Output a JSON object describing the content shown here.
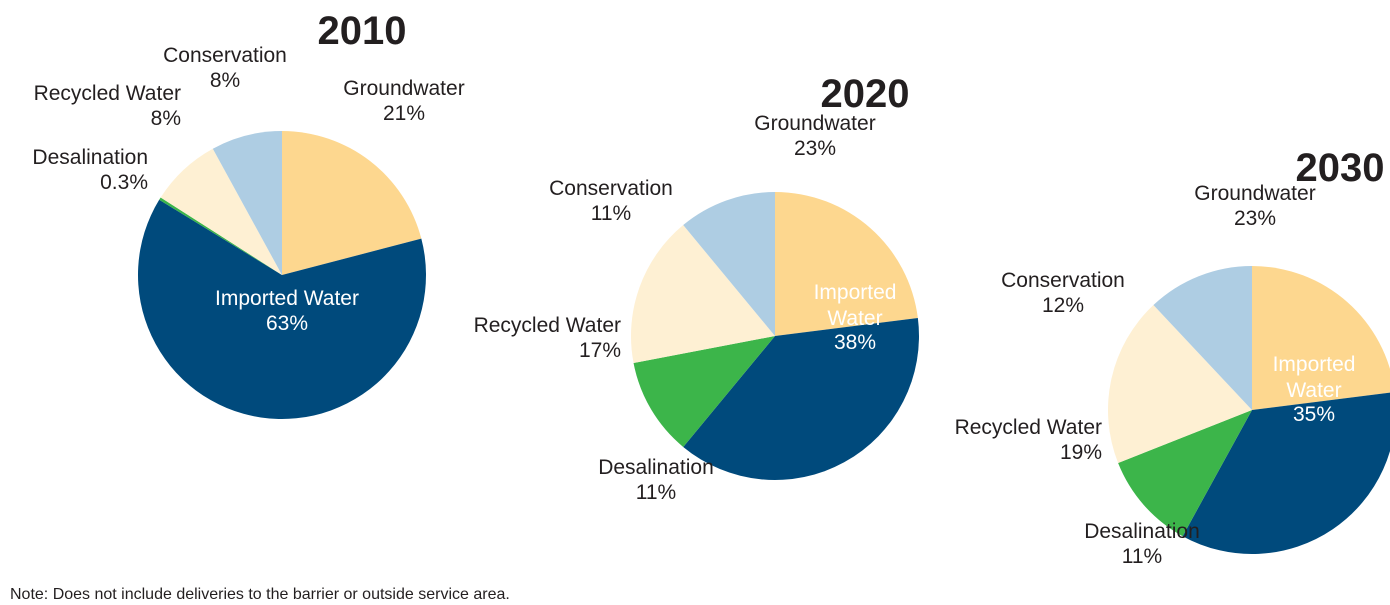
{
  "chart_data": [
    {
      "type": "pie",
      "title": "2010",
      "slices": [
        {
          "label": "Groundwater",
          "value": 21,
          "display": "21%",
          "color": "#fdd78f"
        },
        {
          "label": "Imported Water",
          "value": 63,
          "display": "63%",
          "color": "#004a7c"
        },
        {
          "label": "Desalination",
          "value": 0.3,
          "display": "0.3%",
          "color": "#3cb54a"
        },
        {
          "label": "Recycled Water",
          "value": 8,
          "display": "8%",
          "color": "#fef0d3"
        },
        {
          "label": "Conservation",
          "value": 8,
          "display": "8%",
          "color": "#aecde3"
        }
      ]
    },
    {
      "type": "pie",
      "title": "2020",
      "slices": [
        {
          "label": "Groundwater",
          "value": 23,
          "display": "23%",
          "color": "#fdd78f"
        },
        {
          "label": "Imported Water",
          "value": 38,
          "display": "38%",
          "color": "#004a7c"
        },
        {
          "label": "Desalination",
          "value": 11,
          "display": "11%",
          "color": "#3cb54a"
        },
        {
          "label": "Recycled Water",
          "value": 17,
          "display": "17%",
          "color": "#fef0d3"
        },
        {
          "label": "Conservation",
          "value": 11,
          "display": "11%",
          "color": "#aecde3"
        }
      ]
    },
    {
      "type": "pie",
      "title": "2030",
      "slices": [
        {
          "label": "Groundwater",
          "value": 23,
          "display": "23%",
          "color": "#fdd78f"
        },
        {
          "label": "Imported Water",
          "value": 35,
          "display": "35%",
          "color": "#004a7c"
        },
        {
          "label": "Desalination",
          "value": 11,
          "display": "11%",
          "color": "#3cb54a"
        },
        {
          "label": "Recycled Water",
          "value": 19,
          "display": "19%",
          "color": "#fef0d3"
        },
        {
          "label": "Conservation",
          "value": 12,
          "display": "12%",
          "color": "#aecde3"
        }
      ]
    }
  ],
  "note": "Note: Does not include deliveries to the barrier or outside service area."
}
